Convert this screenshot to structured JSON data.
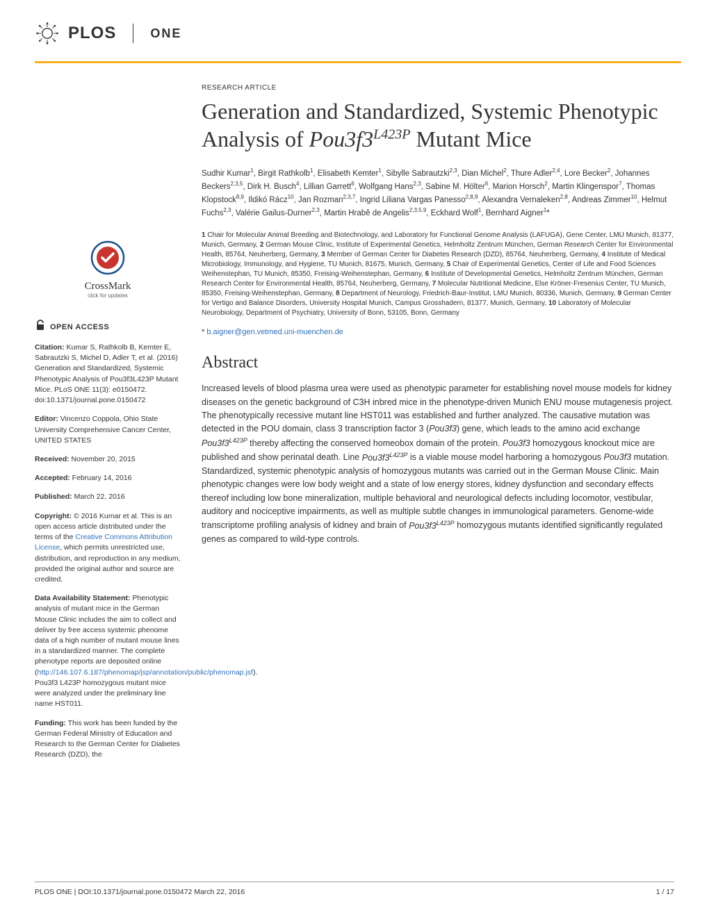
{
  "journal": {
    "brand": "PLOS",
    "name": "ONE",
    "accent_color": "#f9af1f"
  },
  "crossmark": {
    "label": "CrossMark",
    "sublabel": "click for updates"
  },
  "open_access": {
    "label": "OPEN ACCESS"
  },
  "sidebar": {
    "citation_label": "Citation:",
    "citation": " Kumar S, Rathkolb B, Kemter E, Sabrautzki S, Michel D, Adler T, et al. (2016) Generation and Standardized, Systemic Phenotypic Analysis of Pou3f3L423P Mutant Mice. PLoS ONE 11(3): e0150472. doi:10.1371/journal.pone.0150472",
    "editor_label": "Editor:",
    "editor": " Vincenzo Coppola, Ohio State University Comprehensive Cancer Center, UNITED STATES",
    "received_label": "Received:",
    "received": " November 20, 2015",
    "accepted_label": "Accepted:",
    "accepted": " February 14, 2016",
    "published_label": "Published:",
    "published": " March 22, 2016",
    "copyright_label": "Copyright:",
    "copyright_prelink": " © 2016 Kumar et al. This is an open access article distributed under the terms of the ",
    "copyright_link": "Creative Commons Attribution License",
    "copyright_postlink": ", which permits unrestricted use, distribution, and reproduction in any medium, provided the original author and source are credited.",
    "data_label": "Data Availability Statement:",
    "data_prelink": " Phenotypic analysis of mutant mice in the German Mouse Clinic includes the aim to collect and deliver by free access systemic phenome data of a high number of mutant mouse lines in a standardized manner. The complete phenotype reports are deposited online (",
    "data_link": "http://146.107.6.187/phenomap/jsp/annotation/public/phenomap.jsf",
    "data_postlink": "). Pou3f3 L423P homozygous mutant mice were analyzed under the preliminary line name HST011.",
    "funding_label": "Funding:",
    "funding": " This work has been funded by the German Federal Ministry of Education and Research to the German Center for Diabetes Research (DZD), the"
  },
  "article": {
    "type": "RESEARCH ARTICLE",
    "title_part1": "Generation and Standardized, Systemic Phenotypic Analysis of ",
    "title_italic": "Pou3f3",
    "title_sup": "L423P",
    "title_part2": " Mutant Mice",
    "authors_html": "Sudhir Kumar<sup>1</sup>, Birgit Rathkolb<sup>1</sup>, Elisabeth Kemter<sup>1</sup>, Sibylle Sabrautzki<sup>2,3</sup>, Dian Michel<sup>2</sup>, Thure Adler<sup>2,4</sup>, Lore Becker<sup>2</sup>, Johannes Beckers<sup>2,3,5</sup>, Dirk H. Busch<sup>4</sup>, Lillian Garrett<sup>6</sup>, Wolfgang Hans<sup>2,3</sup>, Sabine M. Hölter<sup>6</sup>, Marion Horsch<sup>2</sup>, Martin Klingenspor<sup>7</sup>, Thomas Klopstock<sup>8,9</sup>, Ildikó Rácz<sup>10</sup>, Jan Rozman<sup>2,3,7</sup>, Ingrid Liliana Vargas Panesso<sup>2,8,9</sup>, Alexandra Vernaleken<sup>2,8</sup>, Andreas Zimmer<sup>10</sup>, Helmut Fuchs<sup>2,3</sup>, Valérie Gailus-Durner<sup>2,3</sup>, Martin Hrabě de Angelis<sup>2,3,5,9</sup>, Eckhard Wolf<sup>1</sup>, Bernhard Aigner<sup>1</sup>*",
    "affiliations": "1 Chair for Molecular Animal Breeding and Biotechnology, and Laboratory for Functional Genome Analysis (LAFUGA), Gene Center, LMU Munich, 81377, Munich, Germany, 2 German Mouse Clinic, Institute of Experimental Genetics, Helmholtz Zentrum München, German Research Center for Environmental Health, 85764, Neuherberg, Germany, 3 Member of German Center for Diabetes Research (DZD), 85764, Neuherberg, Germany, 4 Institute of Medical Microbiology, Immunology, and Hygiene, TU Munich, 81675, Munich, Germany, 5 Chair of Experimental Genetics, Center of Life and Food Sciences Weihenstephan, TU Munich, 85350, Freising-Weihenstephan, Germany, 6 Institute of Developmental Genetics, Helmholtz Zentrum München, German Research Center for Environmental Health, 85764, Neuherberg, Germany, 7 Molecular Nutritional Medicine, Else Kröner-Fresenius Center, TU Munich, 85350, Freising-Weihenstephan, Germany, 8 Department of Neurology, Friedrich-Baur-Institut, LMU Munich, 80336, Munich, Germany, 9 German Center for Vertigo and Balance Disorders, University Hospital Munich, Campus Grosshadern, 81377, Munich, Germany, 10 Laboratory of Molecular Neurobiology, Department of Psychiatry, University of Bonn, 53105, Bonn, Germany",
    "email_prefix": "* ",
    "email": "b.aigner@gen.vetmed.uni-muenchen.de"
  },
  "abstract": {
    "heading": "Abstract",
    "text_html": "Increased levels of blood plasma urea were used as phenotypic parameter for establishing novel mouse models for kidney diseases on the genetic background of C3H inbred mice in the phenotype-driven Munich ENU mouse mutagenesis project. The phenotypically recessive mutant line HST011 was established and further analyzed. The causative mutation was detected in the POU domain, class 3 transcription factor 3 (<i>Pou3f3</i>) gene, which leads to the amino acid exchange <i>Pou3f3<sup>L423P</sup></i> thereby affecting the conserved homeobox domain of the protein. <i>Pou3f3</i> homozygous knockout mice are published and show perinatal death. Line <i>Pou3f3<sup>L423P</sup></i> is a viable mouse model harboring a homozygous <i>Pou3f3</i> mutation. Standardized, systemic phenotypic analysis of homozygous mutants was carried out in the German Mouse Clinic. Main phenotypic changes were low body weight and a state of low energy stores, kidney dysfunction and secondary effects thereof including low bone mineralization, multiple behavioral and neurological defects including locomotor, vestibular, auditory and nociceptive impairments, as well as multiple subtle changes in immunological parameters. Genome-wide transcriptome profiling analysis of kidney and brain of <i>Pou3f3<sup>L423P</sup></i> homozygous mutants identified significantly regulated genes as compared to wild-type controls."
  },
  "footer": {
    "left": "PLOS ONE | DOI:10.1371/journal.pone.0150472   March 22, 2016",
    "right": "1 / 17"
  }
}
